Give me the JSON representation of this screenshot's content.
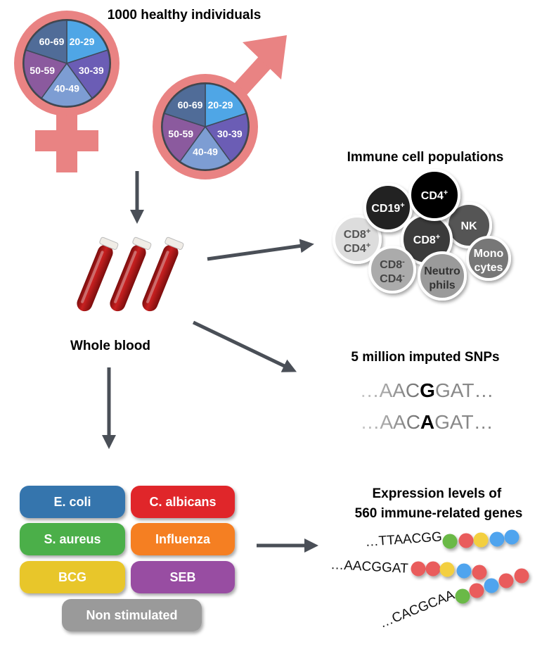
{
  "cohort": {
    "title_line1": "1000 healthy individuals",
    "age_groups": [
      "20-29",
      "30-39",
      "40-49",
      "50-59",
      "60-69"
    ],
    "age_colors": [
      "#4fa6e6",
      "#6b5db5",
      "#7d9dd3",
      "#8b5a9e",
      "#506c98"
    ],
    "symbol_color": "#e98383"
  },
  "blood": {
    "label": "Whole blood",
    "tube_color": "#b01818"
  },
  "immune": {
    "title": "Immune cell populations",
    "cells": [
      {
        "label": "CD8",
        "sup": "+",
        "label2": "CD4",
        "sup2": "+",
        "fill": "#dddddd",
        "text": "#555555"
      },
      {
        "label": "CD19",
        "sup": "+",
        "fill": "#222222",
        "text": "#ffffff"
      },
      {
        "label": "NK",
        "fill": "#555555",
        "text": "#ffffff"
      },
      {
        "label": "CD8",
        "sup": "+",
        "fill": "#3a3a3a",
        "text": "#ffffff"
      },
      {
        "label": "CD4",
        "sup": "+",
        "fill": "#000000",
        "text": "#ffffff"
      },
      {
        "label": "CD8",
        "sup": "-",
        "label2": "CD4",
        "sup2": "-",
        "fill": "#ababab",
        "text": "#444444"
      },
      {
        "label": "Neutro",
        "label2": "phils",
        "fill": "#9a9a9a",
        "text": "#333333"
      },
      {
        "label": "Mono",
        "label2": "cytes",
        "fill": "#777777",
        "text": "#ffffff"
      }
    ]
  },
  "snps": {
    "title": "5 million imputed SNPs",
    "rows": [
      {
        "prefix": "…AAC",
        "allele": "G",
        "suffix": "GAT…"
      },
      {
        "prefix": "…AAC",
        "allele": "A",
        "suffix": "GAT…"
      }
    ]
  },
  "stimuli": [
    {
      "label": "E. coli",
      "color": "#3474ad"
    },
    {
      "label": "C. albicans",
      "color": "#e0262b"
    },
    {
      "label": "S. aureus",
      "color": "#4caf4a"
    },
    {
      "label": "Influenza",
      "color": "#f57f21"
    },
    {
      "label": "BCG",
      "color": "#e8c62a"
    },
    {
      "label": "SEB",
      "color": "#984ea2"
    },
    {
      "label": "Non stimulated",
      "color": "#9a9a9a"
    }
  ],
  "expression": {
    "title_line1": "Expression levels of",
    "title_line2": "560 immune-related genes",
    "sequences": [
      "…TTAACGG",
      "…AACGGAT",
      "…CACGCAA"
    ],
    "bead_colors": {
      "green": "#6ab947",
      "red": "#e95b5b",
      "yellow": "#f3cf3f",
      "blue": "#50a4ee"
    }
  }
}
